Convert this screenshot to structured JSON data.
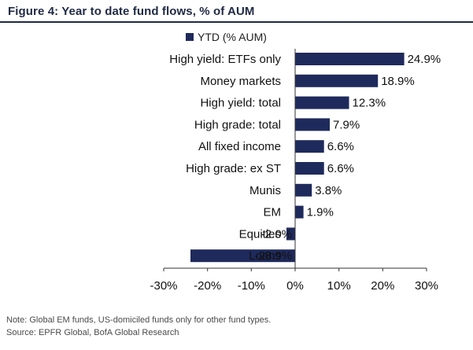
{
  "figure": {
    "title": "Figure 4: Year to date fund flows, % of AUM",
    "note": "Note: Global EM funds, US-domiciled funds only for other fund types.",
    "source": "Source: EPFR Global, BofA Global Research"
  },
  "colors": {
    "bar": "#1f2a5c",
    "title": "#1f2a44"
  },
  "chart_data": {
    "type": "bar",
    "orientation": "horizontal",
    "title": "Figure 4: Year to date fund flows, % of AUM",
    "xlabel": "",
    "ylabel": "",
    "xlim": [
      -30,
      30
    ],
    "xticks": [
      -30,
      -20,
      -10,
      0,
      10,
      20,
      30
    ],
    "xtick_labels": [
      "-30%",
      "-20%",
      "-10%",
      "0%",
      "10%",
      "20%",
      "30%"
    ],
    "grid": false,
    "legend": "top",
    "categories": [
      "High yield: ETFs only",
      "Money markets",
      "High yield: total",
      "High grade: total",
      "All fixed income",
      "High grade: ex ST",
      "Munis",
      "EM",
      "Equities",
      "Loans"
    ],
    "series": [
      {
        "name": "YTD (% AUM)",
        "values": [
          24.9,
          18.9,
          12.3,
          7.9,
          6.6,
          6.6,
          3.8,
          1.9,
          -2.0,
          -23.9
        ],
        "labels": [
          "24.9%",
          "18.9%",
          "12.3%",
          "7.9%",
          "6.6%",
          "6.6%",
          "3.8%",
          "1.9%",
          "-2.0%",
          "-23.9%"
        ]
      }
    ]
  }
}
